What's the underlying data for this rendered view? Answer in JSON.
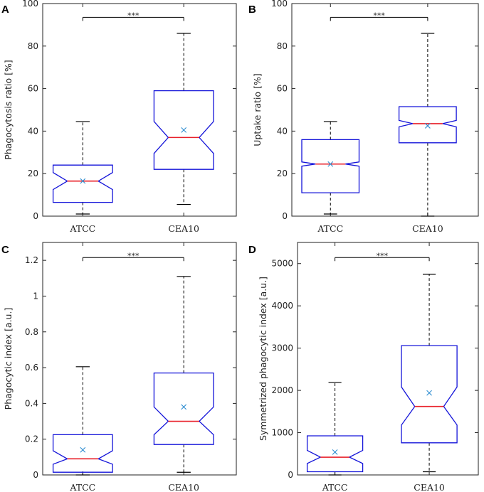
{
  "figure": {
    "panel_count": 4
  },
  "chart_data": [
    {
      "panel": "A",
      "type": "box",
      "ylabel": "Phagocytosis ratio [%]",
      "ylim": [
        0,
        100
      ],
      "yticks": [
        0,
        20,
        40,
        60,
        80,
        100
      ],
      "categories": [
        "ATCC",
        "CEA10"
      ],
      "boxes": [
        {
          "whisker_low": 1,
          "q1": 6.5,
          "median": 16.5,
          "q3": 24,
          "whisker_high": 44.5,
          "notch_low": 12.5,
          "notch_high": 20.5,
          "mean": 16.5
        },
        {
          "whisker_low": 5.5,
          "q1": 22,
          "median": 37,
          "q3": 59,
          "whisker_high": 86,
          "notch_low": 29.5,
          "notch_high": 44.5,
          "mean": 40.5
        }
      ],
      "significance": "***"
    },
    {
      "panel": "B",
      "type": "box",
      "ylabel": "Uptake ratio [%]",
      "ylim": [
        0,
        100
      ],
      "yticks": [
        0,
        20,
        40,
        60,
        80,
        100
      ],
      "categories": [
        "ATCC",
        "CEA10"
      ],
      "boxes": [
        {
          "whisker_low": 1,
          "q1": 11,
          "median": 24.5,
          "q3": 36,
          "whisker_high": 44.5,
          "notch_low": 23.5,
          "notch_high": 25.5,
          "mean": 24.5
        },
        {
          "whisker_low": 0,
          "q1": 34.5,
          "median": 43.5,
          "q3": 51.5,
          "whisker_high": 86,
          "notch_low": 42,
          "notch_high": 45,
          "mean": 42.5
        }
      ],
      "significance": "***"
    },
    {
      "panel": "C",
      "type": "box",
      "ylabel": "Phagocytic index [a.u.]",
      "ylim": [
        0,
        1.3
      ],
      "yticks": [
        0,
        0.2,
        0.4,
        0.6,
        0.8,
        1,
        1.2
      ],
      "categories": [
        "ATCC",
        "CEA10"
      ],
      "boxes": [
        {
          "whisker_low": 0,
          "q1": 0.015,
          "median": 0.09,
          "q3": 0.225,
          "whisker_high": 0.605,
          "notch_low": 0.06,
          "notch_high": 0.135,
          "mean": 0.14
        },
        {
          "whisker_low": 0.015,
          "q1": 0.17,
          "median": 0.3,
          "q3": 0.57,
          "whisker_high": 1.11,
          "notch_low": 0.225,
          "notch_high": 0.38,
          "mean": 0.38
        }
      ],
      "significance": "***"
    },
    {
      "panel": "D",
      "type": "box",
      "ylabel": "Symmetrized phagocytic index [a.u.]",
      "ylim": [
        0,
        5500
      ],
      "yticks": [
        0,
        1000,
        2000,
        3000,
        4000,
        5000
      ],
      "categories": [
        "ATCC",
        "CEA10"
      ],
      "boxes": [
        {
          "whisker_low": 0,
          "q1": 75,
          "median": 420,
          "q3": 925,
          "whisker_high": 2190,
          "notch_low": 270,
          "notch_high": 580,
          "mean": 540
        },
        {
          "whisker_low": 75,
          "q1": 760,
          "median": 1620,
          "q3": 3060,
          "whisker_high": 4750,
          "notch_low": 1180,
          "notch_high": 2080,
          "mean": 1940
        }
      ],
      "significance": "***"
    }
  ],
  "colors": {
    "box": "#1414d9",
    "median": "#e8202a",
    "mean": "#2f8ed1",
    "whisker": "#000000",
    "axes": "#222222"
  }
}
